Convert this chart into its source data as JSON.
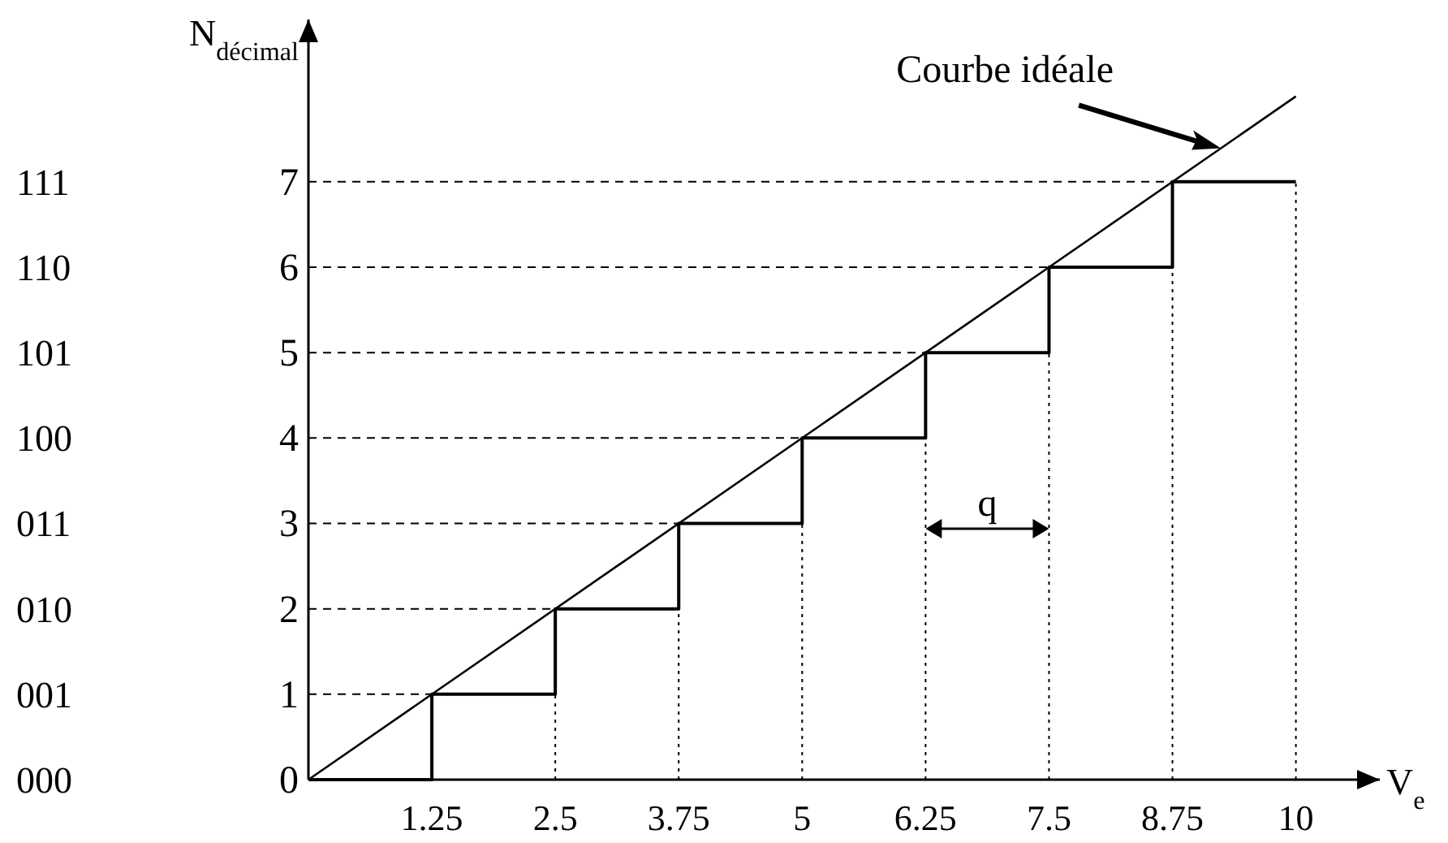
{
  "chart_data": {
    "type": "step",
    "xlabel": "V$_{e}$",
    "ylabel": "N$_{décimal}$",
    "xlim": [
      0,
      10.85
    ],
    "ylim": [
      0,
      8.9
    ],
    "xticks": [
      1.25,
      2.5,
      3.75,
      5,
      6.25,
      7.5,
      8.75,
      10
    ],
    "yticks": [
      0,
      1,
      2,
      3,
      4,
      5,
      6,
      7
    ],
    "series": [
      {
        "type": "step",
        "color": "#000000",
        "x": [
          0,
          1.25,
          2.5,
          3.75,
          5,
          6.25,
          7.5,
          8.75,
          10
        ],
        "values": [
          0,
          1,
          2,
          3,
          4,
          5,
          6,
          7,
          7
        ]
      },
      {
        "type": "line",
        "color": "#000000",
        "x": [
          0,
          10
        ],
        "values": [
          0,
          8
        ]
      }
    ],
    "ref_lines": [
      {
        "axis": "y",
        "value": 1,
        "line_style": "dashed"
      },
      {
        "axis": "y",
        "value": 2,
        "line_style": "dashed"
      },
      {
        "axis": "y",
        "value": 3,
        "line_style": "dashed"
      },
      {
        "axis": "y",
        "value": 4,
        "line_style": "dashed"
      },
      {
        "axis": "y",
        "value": 5,
        "line_style": "dashed"
      },
      {
        "axis": "y",
        "value": 6,
        "line_style": "dashed"
      },
      {
        "axis": "y",
        "value": 7,
        "line_style": "dashed"
      },
      {
        "axis": "x",
        "value": 2.5,
        "line_style": "dotted"
      },
      {
        "axis": "x",
        "value": 3.75,
        "line_style": "dotted"
      },
      {
        "axis": "x",
        "value": 5,
        "line_style": "dotted"
      },
      {
        "axis": "x",
        "value": 6.25,
        "line_style": "dotted"
      },
      {
        "axis": "x",
        "value": 7.5,
        "line_style": "dotted"
      },
      {
        "axis": "x",
        "value": 8.75,
        "line_style": "dotted"
      },
      {
        "axis": "x",
        "value": 10,
        "line_style": "dotted"
      }
    ],
    "annotations": [
      "000",
      "001",
      "010",
      "011",
      "100",
      "101",
      "110",
      "111",
      "Courbe idéale",
      "q"
    ],
    "grid": false,
    "marker": "none"
  }
}
